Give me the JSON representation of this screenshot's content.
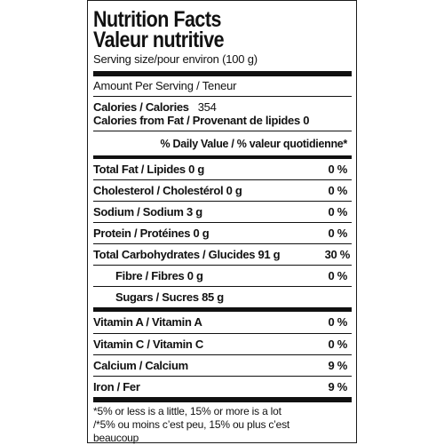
{
  "header": {
    "title_en": "Nutrition Facts",
    "title_fr": "Valeur nutritive",
    "serving_size": "Serving size/pour environ (100 g)"
  },
  "amount_per_serving": "Amount Per Serving / Teneur",
  "calories": {
    "label": "Calories / Calories",
    "value": "354",
    "from_fat_label": "Calories from Fat / Provenant de lipides",
    "from_fat_value": "0"
  },
  "daily_value_header": "% Daily Value / % valeur quotidienne*",
  "nutrients": [
    {
      "label": "Total Fat / Lipides 0 g",
      "percent": "0 %"
    },
    {
      "label": "Cholesterol / Cholestérol 0 g",
      "percent": "0 %"
    },
    {
      "label": "Sodium / Sodium 3 g",
      "percent": "0 %"
    },
    {
      "label": "Protein / Protéines 0 g",
      "percent": "0 %"
    },
    {
      "label": "Total Carbohydrates / Glucides 91 g",
      "percent": "30 %"
    },
    {
      "label": "Fibre / Fibres 0 g",
      "percent": "0 %"
    },
    {
      "label": "Sugars / Sucres  85 g",
      "percent": ""
    }
  ],
  "vitamins": [
    {
      "label": "Vitamin A / Vitamin A",
      "percent": "0 %"
    },
    {
      "label": "Vitamin C / Vitamin C",
      "percent": "0 %"
    },
    {
      "label": "Calcium / Calcium",
      "percent": "9 %"
    },
    {
      "label": "Iron / Fer",
      "percent": "9 %"
    }
  ],
  "footnote": {
    "line1": "*5% or less is a little, 15% or more is a lot",
    "line2": "/*5% ou moins c’est peu, 15% ou plus c’est",
    "line3": "beaucoup"
  }
}
